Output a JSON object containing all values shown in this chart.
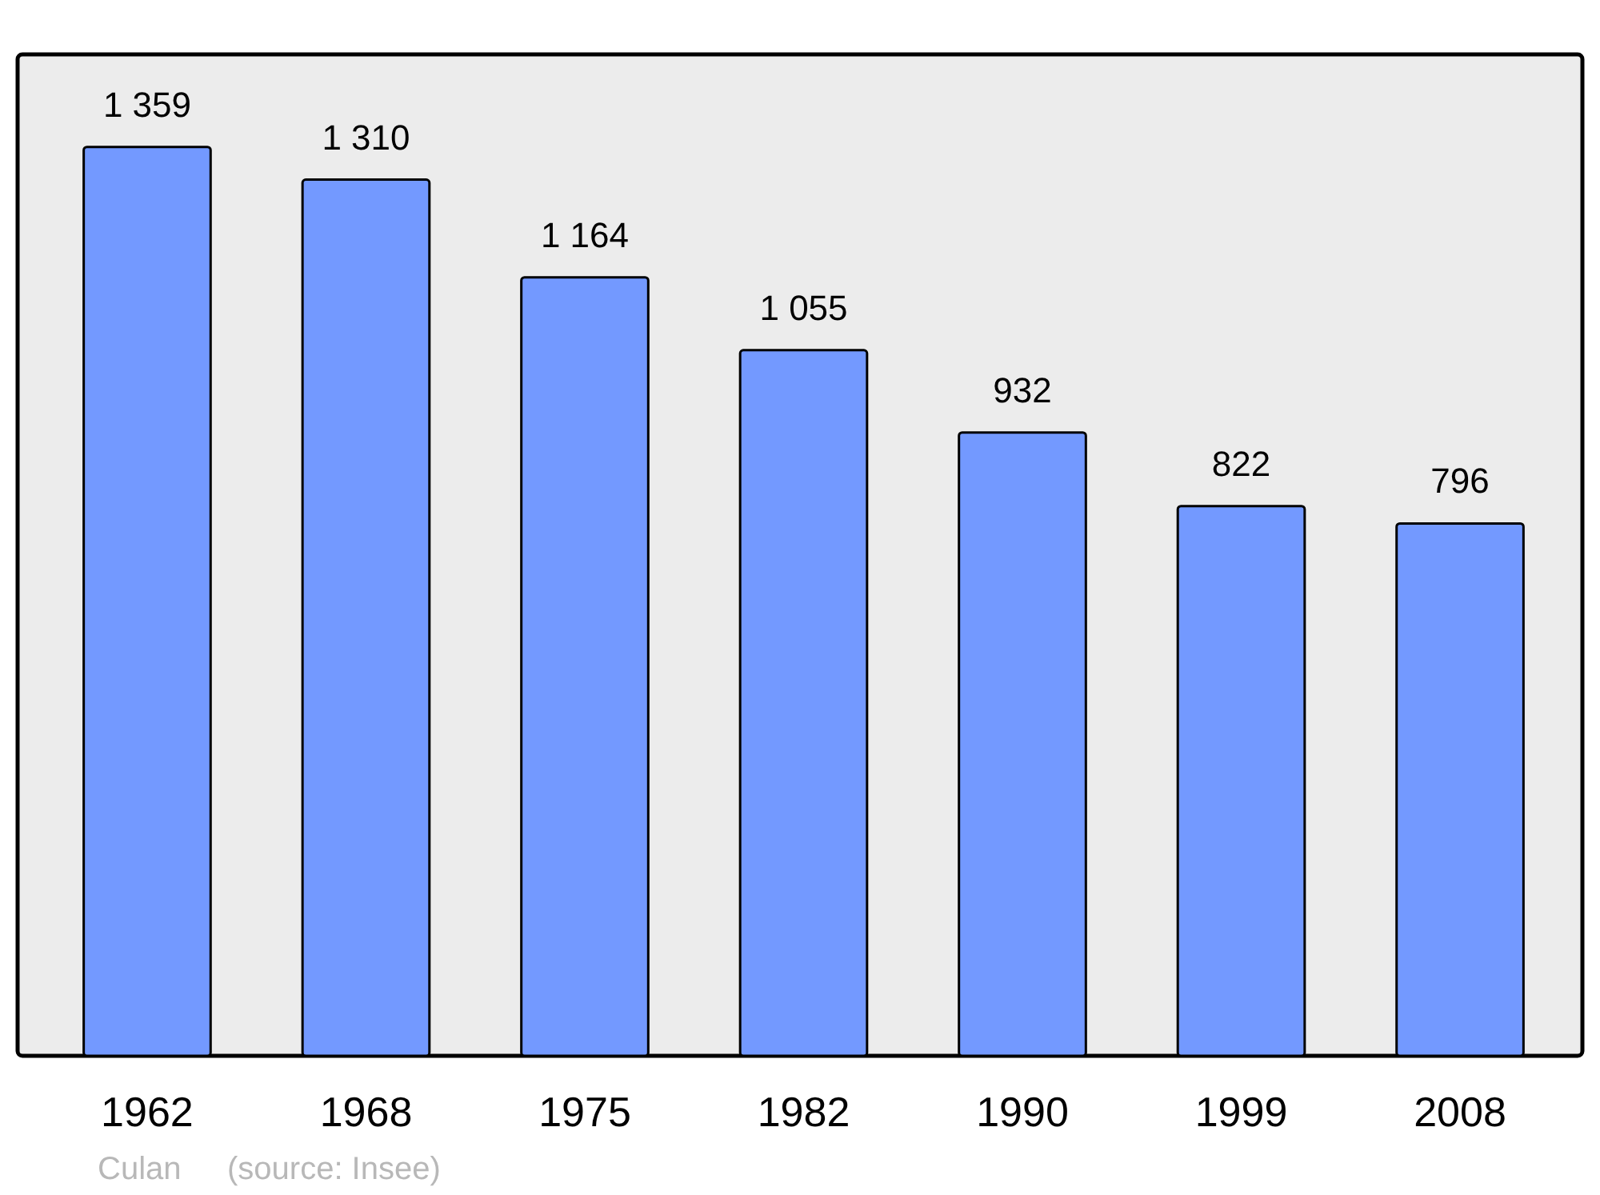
{
  "chart_data": {
    "type": "bar",
    "categories": [
      "1962",
      "1968",
      "1975",
      "1982",
      "1990",
      "1999",
      "2008"
    ],
    "values": [
      1359,
      1310,
      1164,
      1055,
      932,
      822,
      796
    ],
    "value_labels": [
      "1 359",
      "1 310",
      "1 164",
      "1 055",
      "932",
      "822",
      "796"
    ],
    "color": "#7399ff",
    "annotations": [
      "Culan",
      "(source: Insee)"
    ]
  }
}
